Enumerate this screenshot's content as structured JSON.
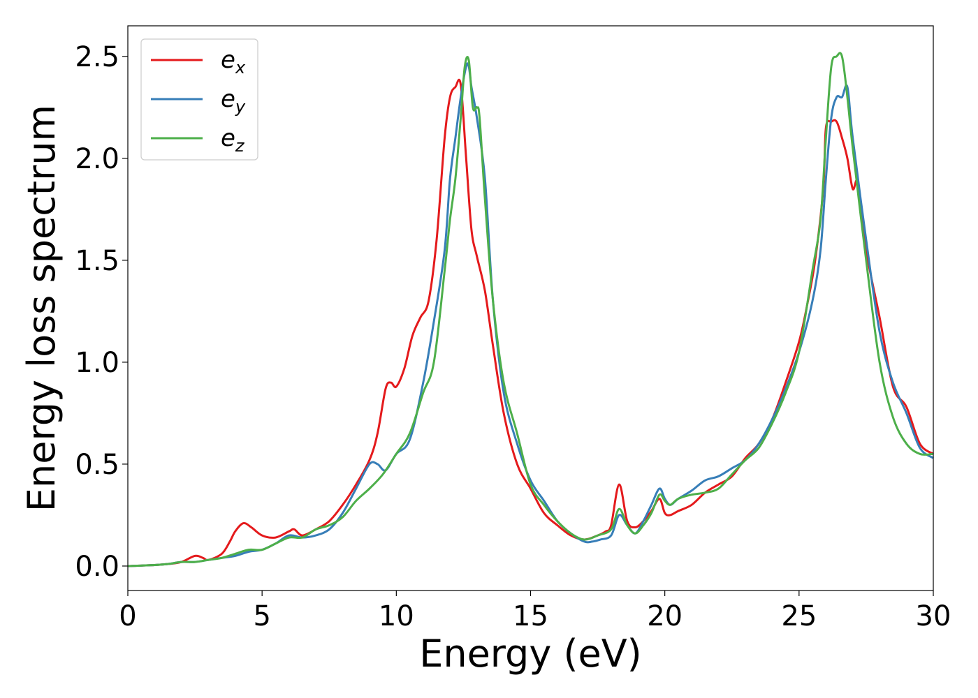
{
  "chart_data": {
    "type": "line",
    "title": "",
    "xlabel": "Energy (eV)",
    "ylabel": "Energy loss spectrum",
    "xlim": [
      0,
      30
    ],
    "ylim": [
      -0.12,
      2.65
    ],
    "xticks": [
      0,
      5,
      10,
      15,
      20,
      25,
      30
    ],
    "xtick_labels": [
      "0",
      "5",
      "10",
      "15",
      "20",
      "25",
      "30"
    ],
    "yticks": [
      0.0,
      0.5,
      1.0,
      1.5,
      2.0,
      2.5
    ],
    "ytick_labels": [
      "0.0",
      "0.5",
      "1.0",
      "1.5",
      "2.0",
      "2.5"
    ],
    "grid": false,
    "legend": "top-left",
    "series": [
      {
        "name": "e",
        "subscript": "x",
        "color": "#e41a1c",
        "x": [
          0,
          1,
          1.5,
          2,
          2.5,
          2.8,
          3,
          3.5,
          3.8,
          4,
          4.3,
          4.6,
          5,
          5.5,
          6,
          6.2,
          6.5,
          7,
          7.5,
          8,
          8.5,
          9,
          9.3,
          9.6,
          9.8,
          10,
          10.3,
          10.6,
          10.9,
          11.2,
          11.5,
          11.8,
          12,
          12.2,
          12.4,
          12.6,
          12.8,
          13,
          13.3,
          13.6,
          14,
          14.5,
          15,
          15.5,
          16,
          16.5,
          17,
          17.5,
          17.8,
          18,
          18.3,
          18.6,
          18.9,
          19.2,
          19.5,
          19.8,
          20,
          20.2,
          20.5,
          21,
          21.5,
          22,
          22.5,
          23,
          23.5,
          24,
          24.5,
          25,
          25.3,
          25.6,
          25.9,
          26,
          26.2,
          26.4,
          26.6,
          26.8,
          27,
          27.2,
          27.5,
          28,
          28.5,
          29,
          29.5,
          30
        ],
        "y": [
          0,
          0.005,
          0.01,
          0.02,
          0.05,
          0.04,
          0.03,
          0.06,
          0.12,
          0.17,
          0.21,
          0.19,
          0.15,
          0.14,
          0.17,
          0.18,
          0.15,
          0.18,
          0.22,
          0.3,
          0.4,
          0.52,
          0.65,
          0.87,
          0.9,
          0.88,
          0.97,
          1.13,
          1.22,
          1.3,
          1.6,
          2.1,
          2.3,
          2.35,
          2.36,
          2.0,
          1.65,
          1.52,
          1.35,
          1.08,
          0.75,
          0.5,
          0.38,
          0.26,
          0.2,
          0.15,
          0.13,
          0.15,
          0.17,
          0.2,
          0.4,
          0.22,
          0.19,
          0.22,
          0.27,
          0.33,
          0.26,
          0.25,
          0.27,
          0.3,
          0.36,
          0.4,
          0.44,
          0.53,
          0.6,
          0.72,
          0.9,
          1.1,
          1.28,
          1.5,
          1.85,
          2.15,
          2.18,
          2.18,
          2.1,
          2.0,
          1.85,
          1.88,
          1.55,
          1.22,
          0.88,
          0.78,
          0.6,
          0.55
        ]
      },
      {
        "name": "e",
        "subscript": "y",
        "color": "#377eb8",
        "x": [
          0,
          1,
          1.5,
          2,
          2.5,
          3,
          3.5,
          4,
          4.5,
          5,
          5.5,
          6,
          6.5,
          7,
          7.5,
          8,
          8.5,
          9,
          9.3,
          9.6,
          10,
          10.5,
          11,
          11.4,
          11.8,
          12,
          12.2,
          12.4,
          12.6,
          12.7,
          12.8,
          13,
          13.3,
          13.6,
          14,
          14.5,
          15,
          15.5,
          16,
          16.5,
          17,
          17.3,
          17.6,
          18,
          18.3,
          18.6,
          18.9,
          19.2,
          19.5,
          19.8,
          20,
          20.2,
          20.5,
          21,
          21.5,
          22,
          22.5,
          23,
          23.5,
          24,
          24.5,
          25,
          25.5,
          25.8,
          26,
          26.2,
          26.4,
          26.6,
          26.8,
          27,
          27.5,
          28,
          28.5,
          29,
          29.5,
          30
        ],
        "y": [
          0,
          0.005,
          0.01,
          0.02,
          0.02,
          0.03,
          0.04,
          0.05,
          0.07,
          0.08,
          0.11,
          0.15,
          0.14,
          0.15,
          0.18,
          0.26,
          0.38,
          0.5,
          0.5,
          0.47,
          0.55,
          0.62,
          0.9,
          1.2,
          1.55,
          1.9,
          2.1,
          2.3,
          2.45,
          2.45,
          2.35,
          2.2,
          1.9,
          1.3,
          0.85,
          0.6,
          0.42,
          0.32,
          0.22,
          0.16,
          0.12,
          0.12,
          0.13,
          0.15,
          0.25,
          0.2,
          0.16,
          0.22,
          0.3,
          0.38,
          0.33,
          0.3,
          0.33,
          0.37,
          0.42,
          0.44,
          0.48,
          0.52,
          0.6,
          0.72,
          0.87,
          1.05,
          1.3,
          1.55,
          1.9,
          2.2,
          2.3,
          2.3,
          2.35,
          2.1,
          1.6,
          1.15,
          0.9,
          0.75,
          0.58,
          0.53
        ]
      },
      {
        "name": "e",
        "subscript": "z",
        "color": "#4daf4a",
        "x": [
          0,
          1,
          1.5,
          2,
          2.5,
          3,
          3.5,
          4,
          4.5,
          5,
          5.5,
          6,
          6.5,
          7,
          7.5,
          8,
          8.5,
          9,
          9.5,
          10,
          10.5,
          11,
          11.4,
          11.8,
          12,
          12.2,
          12.4,
          12.55,
          12.7,
          12.85,
          13,
          13.1,
          13.3,
          13.6,
          14,
          14.5,
          15,
          15.5,
          16,
          16.5,
          17,
          17.5,
          18,
          18.3,
          18.6,
          18.9,
          19.2,
          19.5,
          19.8,
          20,
          20.2,
          20.5,
          21,
          21.5,
          22,
          22.5,
          23,
          23.5,
          24,
          24.5,
          25,
          25.5,
          25.8,
          26,
          26.2,
          26.4,
          26.6,
          26.8,
          27,
          27.5,
          28,
          28.5,
          29,
          29.5,
          30
        ],
        "y": [
          0,
          0.005,
          0.01,
          0.02,
          0.02,
          0.03,
          0.04,
          0.06,
          0.08,
          0.08,
          0.11,
          0.14,
          0.14,
          0.18,
          0.2,
          0.24,
          0.32,
          0.38,
          0.45,
          0.55,
          0.65,
          0.85,
          1.0,
          1.45,
          1.7,
          1.9,
          2.2,
          2.45,
          2.48,
          2.25,
          2.25,
          2.2,
          1.8,
          1.3,
          0.9,
          0.65,
          0.4,
          0.3,
          0.22,
          0.16,
          0.13,
          0.15,
          0.18,
          0.28,
          0.2,
          0.16,
          0.2,
          0.26,
          0.35,
          0.32,
          0.3,
          0.33,
          0.35,
          0.36,
          0.38,
          0.45,
          0.52,
          0.58,
          0.7,
          0.85,
          1.05,
          1.45,
          1.7,
          2.1,
          2.45,
          2.5,
          2.5,
          2.3,
          2.05,
          1.5,
          1.0,
          0.73,
          0.6,
          0.55,
          0.55
        ]
      }
    ]
  }
}
